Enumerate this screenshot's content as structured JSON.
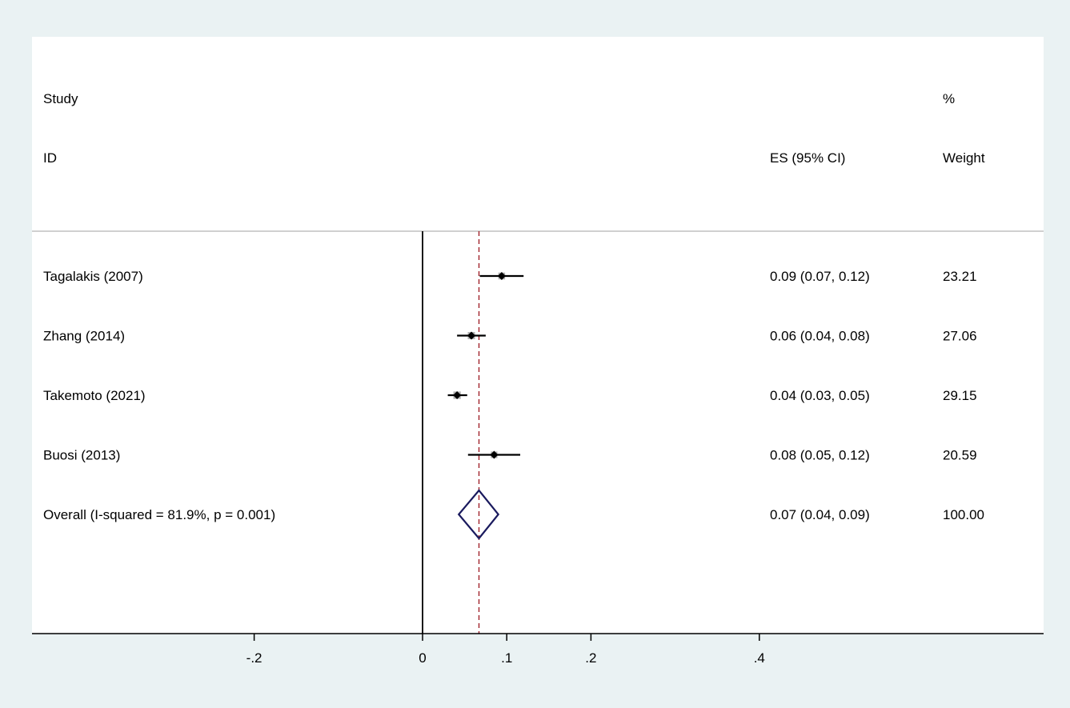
{
  "chart_data": {
    "type": "forest",
    "header": {
      "study_line1": "Study",
      "study_line2": "ID",
      "es_label": "ES (95% CI)",
      "weight_line1": "%",
      "weight_line2": "Weight"
    },
    "studies": [
      {
        "label": "Tagalakis (2007)",
        "es": 0.094,
        "lo": 0.068,
        "hi": 0.12,
        "ci_text": "0.09 (0.07, 0.12)",
        "weight": 23.21,
        "weight_text": "23.21"
      },
      {
        "label": "Zhang (2014)",
        "es": 0.058,
        "lo": 0.041,
        "hi": 0.075,
        "ci_text": "0.06 (0.04, 0.08)",
        "weight": 27.06,
        "weight_text": "27.06"
      },
      {
        "label": "Takemoto (2021)",
        "es": 0.041,
        "lo": 0.03,
        "hi": 0.053,
        "ci_text": "0.04 (0.03, 0.05)",
        "weight": 29.15,
        "weight_text": "29.15"
      },
      {
        "label": "Buosi (2013)",
        "es": 0.085,
        "lo": 0.054,
        "hi": 0.116,
        "ci_text": "0.08 (0.05, 0.12)",
        "weight": 20.59,
        "weight_text": "20.59"
      }
    ],
    "overall": {
      "label": "Overall  (I-squared = 81.9%, p = 0.001)",
      "es": 0.067,
      "lo": 0.043,
      "hi": 0.09,
      "ci_text": "0.07 (0.04, 0.09)",
      "weight_text": "100.00"
    },
    "x_ticks": [
      {
        "value": -0.2,
        "label": "-.2"
      },
      {
        "value": 0,
        "label": "0"
      },
      {
        "value": 0.1,
        "label": ".1"
      },
      {
        "value": 0.2,
        "label": ".2"
      },
      {
        "value": 0.4,
        "label": ".4"
      }
    ],
    "null_line": 0,
    "colors": {
      "background": "#eaf2f3",
      "panel": "#ffffff",
      "weight_box": "#b3b3b3",
      "diamond": "#1a1a5e",
      "overall_line": "#a0222a"
    }
  }
}
